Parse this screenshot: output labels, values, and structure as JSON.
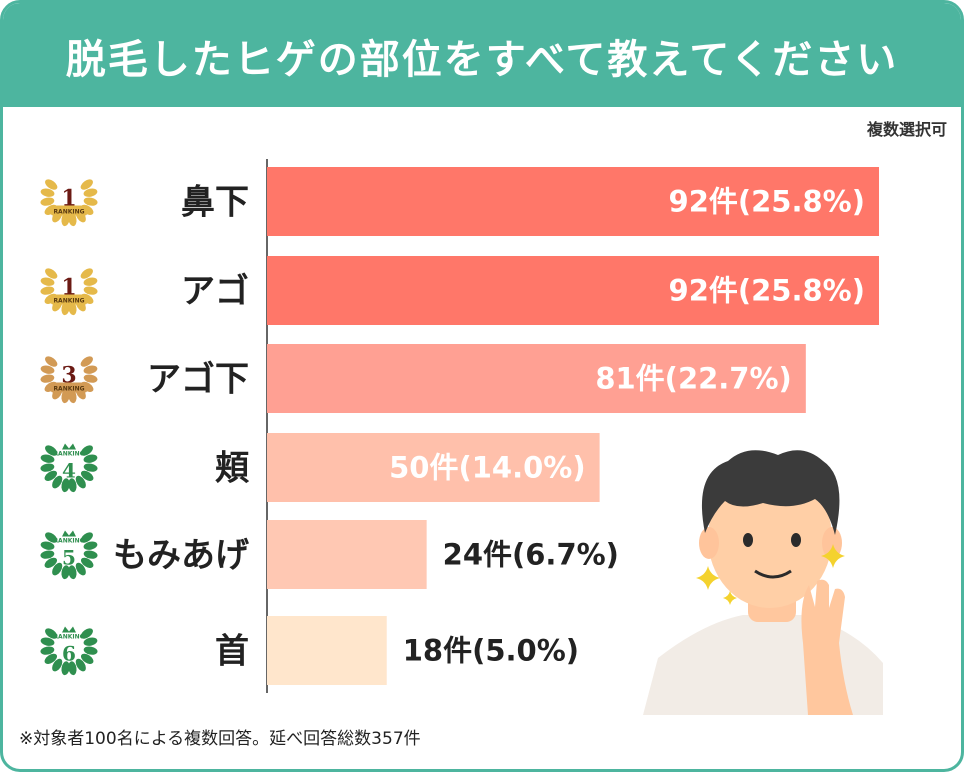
{
  "header": {
    "title": "脱毛したヒゲの部位をすべて教えてください"
  },
  "note_top": "複数選択可",
  "note_bottom": "※対象者100名による複数回答。延べ回答総数357件",
  "badge_text": "RANKING",
  "colors": {
    "header": "#4db59f",
    "bars": [
      "#ff7769",
      "#ff7769",
      "#ffa093",
      "#ffc0ab",
      "#ffc8b3",
      "#ffe6cc"
    ],
    "value_text": [
      "#ffffff",
      "#ffffff",
      "#ffffff",
      "#ffffff",
      "#222222",
      "#222222"
    ]
  },
  "chart_data": {
    "type": "bar",
    "orientation": "horizontal",
    "categories": [
      "鼻下",
      "アゴ",
      "アゴ下",
      "頬",
      "もみあげ",
      "首"
    ],
    "values": [
      92,
      92,
      81,
      50,
      24,
      18
    ],
    "value_labels": [
      "92件(25.8%)",
      "92件(25.8%)",
      "81件(22.7%)",
      "50件(14.0%)",
      "24件(6.7%)",
      "18件(5.0%)"
    ],
    "ranks": [
      "1",
      "1",
      "3",
      "4",
      "5",
      "6"
    ],
    "xlim": [
      0,
      92
    ]
  }
}
